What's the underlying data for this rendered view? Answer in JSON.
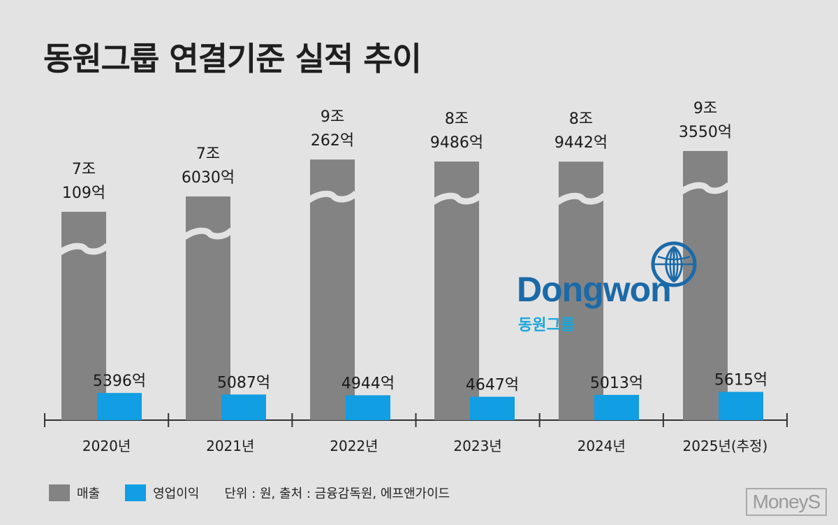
{
  "title": "동원그룹 연결기준 실적 추이",
  "chart_data": {
    "type": "bar",
    "categories": [
      "2020년",
      "2021년",
      "2022년",
      "2023년",
      "2024년",
      "2025년(추정)"
    ],
    "series": [
      {
        "name": "매출",
        "unit": "억원",
        "values": [
          70109,
          76030,
          90262,
          89486,
          89442,
          93550
        ],
        "labels": [
          [
            "7조",
            "109억"
          ],
          [
            "7조",
            "6030억"
          ],
          [
            "9조",
            "262억"
          ],
          [
            "8조",
            "9486억"
          ],
          [
            "8조",
            "9442억"
          ],
          [
            "9조",
            "3550억"
          ]
        ],
        "color": "#838383"
      },
      {
        "name": "영업이익",
        "unit": "억원",
        "values": [
          5396,
          5087,
          4944,
          4647,
          5013,
          5615
        ],
        "labels": [
          "5396억",
          "5087억",
          "4944억",
          "4647억",
          "5013억",
          "5615억"
        ],
        "color": "#119ee3"
      }
    ],
    "axis_break": true
  },
  "legend": {
    "revenue_label": "매출",
    "profit_label": "영업이익",
    "note": "단위 : 원, 출처 : 금융감독원, 에프앤가이드"
  },
  "logo": {
    "word": "Dongwon",
    "sub": "동원그룹"
  },
  "watermark": "MoneyS"
}
